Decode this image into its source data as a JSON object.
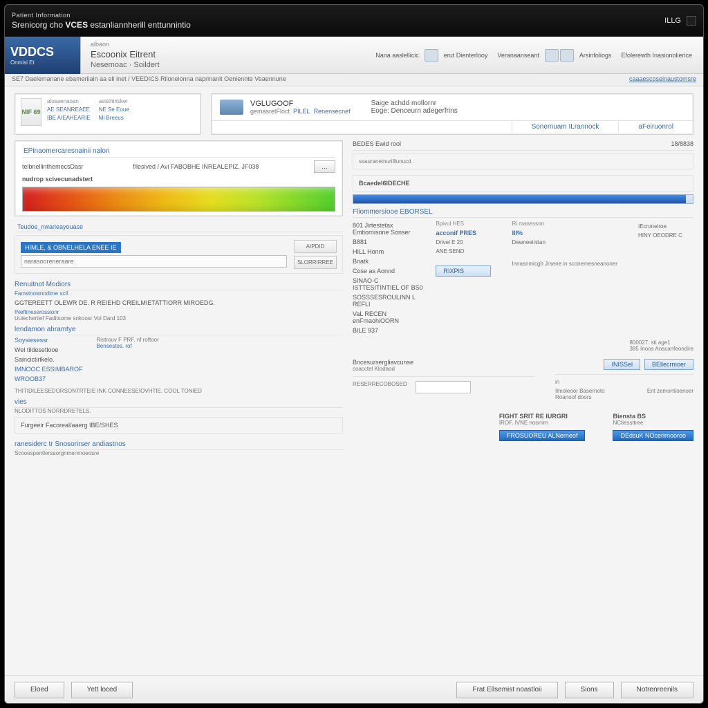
{
  "colors": {
    "accent": "#3d6da5",
    "logo_bg_start": "#3a6aa8",
    "logo_bg_end": "#1f3f72",
    "risk_gradient": [
      "#d32020",
      "#e55315",
      "#eb8a15",
      "#efb816",
      "#e6dd21",
      "#b8e22a",
      "#52ce2d"
    ],
    "progress_fill_start": "#4a8de0",
    "progress_fill_end": "#1c55b3",
    "highlight": "#2a76c4",
    "window_bg": "#f3f3f3"
  },
  "titlebar": {
    "line1": "Patient Information",
    "line2_prefix": "Srenicorg cho",
    "line2_bold": "VCES",
    "line2_suffix": "estanliannherill enttunnintio",
    "right_label": "ILLG"
  },
  "logo": {
    "text": "VDDCS",
    "sub": "Onmisi Et"
  },
  "subtitle": {
    "line1": "albaon",
    "line2": "Escoonix Eitrent",
    "line3": "Nesemoac · Soildert"
  },
  "toolbar": [
    {
      "label": "Nana aaslellicic"
    },
    {
      "label": "erut Dienterlooy"
    },
    {
      "label": "Veranaanseant"
    },
    {
      "label": "Arsinfoliogs"
    },
    {
      "label": "Efolerewth Inasionolierice"
    }
  ],
  "breadcrumb": {
    "left": "SE7 Daelemanane ebameriiain aa eli inet / VEEDICS Riloneionna naprinanit Oeniennte Veaennune",
    "right": "caaaescoseinaustomsre"
  },
  "topcards": {
    "left": {
      "badge": "NIF\n69",
      "cols": [
        {
          "h": "alosaenaoan",
          "a": "AE SEANREAEE",
          "b": "IBE AIEAHEARIE"
        },
        {
          "h": "asisthirisker",
          "a": "NE Se Eoue",
          "b": "Mi Breeus"
        }
      ]
    },
    "right": {
      "welcome_title": "VGLUGOOF",
      "welcome_sub1": "gemasretFloct",
      "welcome_link1": "PILEL",
      "welcome_link2": "Renensecnef",
      "info1": "Saige achdd mollornr",
      "info2": "Eoge: Denceurn adegerfrins",
      "tabs": [
        "Sonemuam ILrannock",
        "aFeiruonrol"
      ]
    }
  },
  "main": {
    "left": {
      "panel1_header": "EPinaomercaresnainii nalori",
      "p1_field_label": "telbnellinthemecsDasr",
      "p1_field_val": "f/lesived / Avi FABOBHE INREALEPIZ. JF038",
      "p1_subheader": "nudrop scivecunadstert",
      "risk_title": "Risk gradient",
      "tab_label": "Teudoe_nwarieayouase",
      "highlight_text": "HIMLE, & OBNELHELA ENEE IE",
      "input_sub": "narasooreneraare",
      "btn_add": "AIPDID",
      "btn_sub": "SLORRIRREE",
      "sec2_header": "Renuitnot Modiors",
      "sec2_sub": "Famstnownndime scif.",
      "sec2_text": "GGTEREETT OLEWR DE. R REIEHD CREILMIETATTIORR MIROEDG.",
      "sec2_link1": "INeftineserossionr",
      "sec2_item2": "Uulechertief Faditsome snkoosr Vol Dard 103",
      "sec3_header": "lendamon ahramtye",
      "sec3_items": [
        "Soysiesessr",
        "Wel tildesetlooe",
        "Saincictirikelo.",
        "IMNOOC ESSIMBAROF",
        "WROOB37"
      ],
      "sec3_kv_label": "Ristrouv F PRF. nf roftoor",
      "sec3_kv_link": "Bensestos. rof",
      "sec3_footer": "THITIDILEESEDORSONTRTEIE INK CONNEESEIOVHTIE. COOL TONIED",
      "sec4_header": "vies",
      "sec4_sub1": "NLODITTOS NORRDRETELS.",
      "sec4_item1": "Furgeeir Facoreal/aaerg IBE/SHES",
      "sec5_header": "ranesiderc tr Snosorirser andiastnos",
      "sec5_item": "Scooespentlersaorgnmenmoeosre"
    },
    "right": {
      "top_bar_label": "BEDES Ewid rool",
      "top_bar_value": "18/8838",
      "group1": "ssauranetnurilllunucd .",
      "group2": "Bcaedel6IDECHE",
      "progress_percent": 98,
      "sec_header": "Fliommersiooe EBORSEL",
      "kv_cols": [
        {
          "h": "Bpivul HES",
          "a": "acconif PRES",
          "b": "Drivel E 20",
          "c": "ANE SEND"
        },
        {
          "h": "Ri manesson",
          "a": "III%",
          "b": "Dewneeinitan",
          "c": ""
        },
        {
          "h": "",
          "a": "IEcroneiroe",
          "b": "HINY OEODRE C",
          "c": ""
        }
      ],
      "items": [
        "801 Jirtestetax Emtiornisone Sonser",
        "B881",
        "HILL Honm",
        "Bnatk",
        "Cose as Aonnd",
        "SINAO-C ISTTESITINTIEL OF BS0",
        "SOSSSESROULINN L REFLI",
        "VaL RECEN enFmaohiOORN",
        "BILE 937"
      ],
      "pill": "RIXPIS",
      "note_header": "Innasnmicgh Jrsene in sconemesneanoner",
      "note_kv_label": "800027.",
      "note_kv_value": "sti age1",
      "note_kv2": "385 Inoos Anscanfeondire",
      "lower_sec1": "Bncesursergliavcunse",
      "lower_sec1_sub": "coacctel Klodaod",
      "lower_field": "RESERRECOBOSED",
      "tabs2": [
        "INISSel",
        "BEllecrmoer"
      ],
      "kv2": [
        {
          "l": "in",
          "v": ""
        },
        {
          "l": "Ilmoleoor Basernoto",
          "v": "Roanoof doors"
        },
        {
          "l": "Ent zemontioenoer",
          "v": ""
        }
      ],
      "summary_h": "FIGHT SRIT RE IURGRI",
      "summary_sub": "IROF. IVNE noorrirn",
      "summary2_h": "Biensta BS",
      "summary2_sub": "NCtiessttree",
      "pbtn1": "FROSUOREU ALNerneof",
      "pbtn2": "DEdsuK NOcerirnooroo"
    }
  },
  "footer": {
    "btn1": "Eloed",
    "btn2": "Yett loced",
    "btn3": "Frat Ellsemist noastloii",
    "btn4": "Sions",
    "btn5": "Notrenreenils"
  }
}
